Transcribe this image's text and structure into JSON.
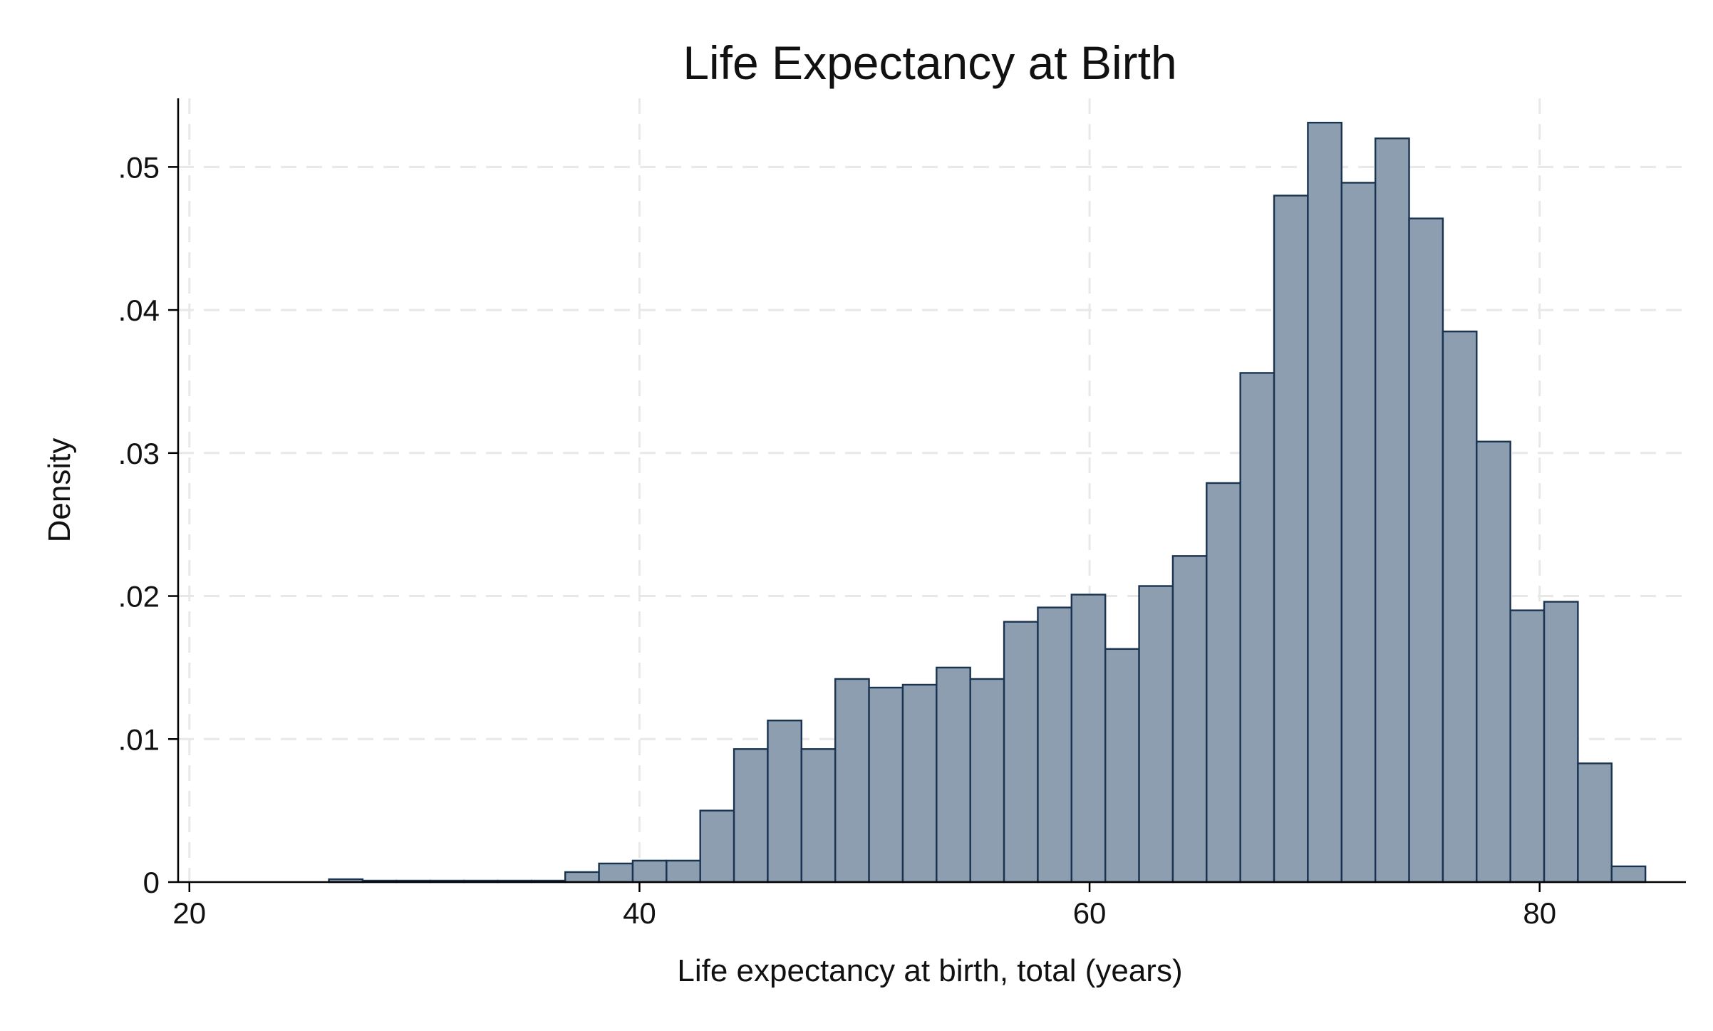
{
  "chart_data": {
    "type": "bar",
    "title": "Life Expectancy at Birth",
    "xlabel": "Life expectancy at birth, total (years)",
    "ylabel": "Density",
    "xlim": [
      19.5,
      86.5
    ],
    "ylim": [
      0,
      0.0548
    ],
    "x_ticks": [
      20,
      40,
      60,
      80
    ],
    "x_tick_labels": [
      "20",
      "40",
      "60",
      "80"
    ],
    "y_ticks": [
      0,
      0.01,
      0.02,
      0.03,
      0.04,
      0.05
    ],
    "y_tick_labels": [
      "0",
      ".01",
      ".02",
      ".03",
      ".04",
      ".05"
    ],
    "grid": true,
    "bin_width": 1.5,
    "bins": [
      {
        "x0": 26.2,
        "value": 0.0002
      },
      {
        "x0": 27.7,
        "value": 0.0001
      },
      {
        "x0": 29.2,
        "value": 0.0001
      },
      {
        "x0": 30.7,
        "value": 0.0001
      },
      {
        "x0": 32.2,
        "value": 0.0001
      },
      {
        "x0": 33.7,
        "value": 0.0001
      },
      {
        "x0": 35.2,
        "value": 0.0001
      },
      {
        "x0": 36.7,
        "value": 0.0007
      },
      {
        "x0": 38.2,
        "value": 0.0013
      },
      {
        "x0": 39.7,
        "value": 0.0015
      },
      {
        "x0": 41.2,
        "value": 0.0015
      },
      {
        "x0": 42.7,
        "value": 0.005
      },
      {
        "x0": 44.2,
        "value": 0.0093
      },
      {
        "x0": 45.7,
        "value": 0.0113
      },
      {
        "x0": 47.2,
        "value": 0.0093
      },
      {
        "x0": 48.7,
        "value": 0.0142
      },
      {
        "x0": 50.2,
        "value": 0.0136
      },
      {
        "x0": 51.7,
        "value": 0.0138
      },
      {
        "x0": 53.2,
        "value": 0.015
      },
      {
        "x0": 54.7,
        "value": 0.0142
      },
      {
        "x0": 56.2,
        "value": 0.0182
      },
      {
        "x0": 57.7,
        "value": 0.0192
      },
      {
        "x0": 59.2,
        "value": 0.0201
      },
      {
        "x0": 60.7,
        "value": 0.0163
      },
      {
        "x0": 62.2,
        "value": 0.0207
      },
      {
        "x0": 63.7,
        "value": 0.0228
      },
      {
        "x0": 65.2,
        "value": 0.0279
      },
      {
        "x0": 66.7,
        "value": 0.0356
      },
      {
        "x0": 68.2,
        "value": 0.048
      },
      {
        "x0": 69.7,
        "value": 0.0531
      },
      {
        "x0": 71.2,
        "value": 0.0489
      },
      {
        "x0": 72.7,
        "value": 0.052
      },
      {
        "x0": 74.2,
        "value": 0.0464
      },
      {
        "x0": 75.7,
        "value": 0.0385
      },
      {
        "x0": 77.2,
        "value": 0.0308
      },
      {
        "x0": 78.7,
        "value": 0.019
      },
      {
        "x0": 80.2,
        "value": 0.0196
      },
      {
        "x0": 81.7,
        "value": 0.0083
      },
      {
        "x0": 83.2,
        "value": 0.0011
      }
    ],
    "colors": {
      "bar_fill": "#8c9eb0",
      "bar_stroke": "#1a3350",
      "grid": "#e8e8e8",
      "axis": "#000000"
    }
  }
}
